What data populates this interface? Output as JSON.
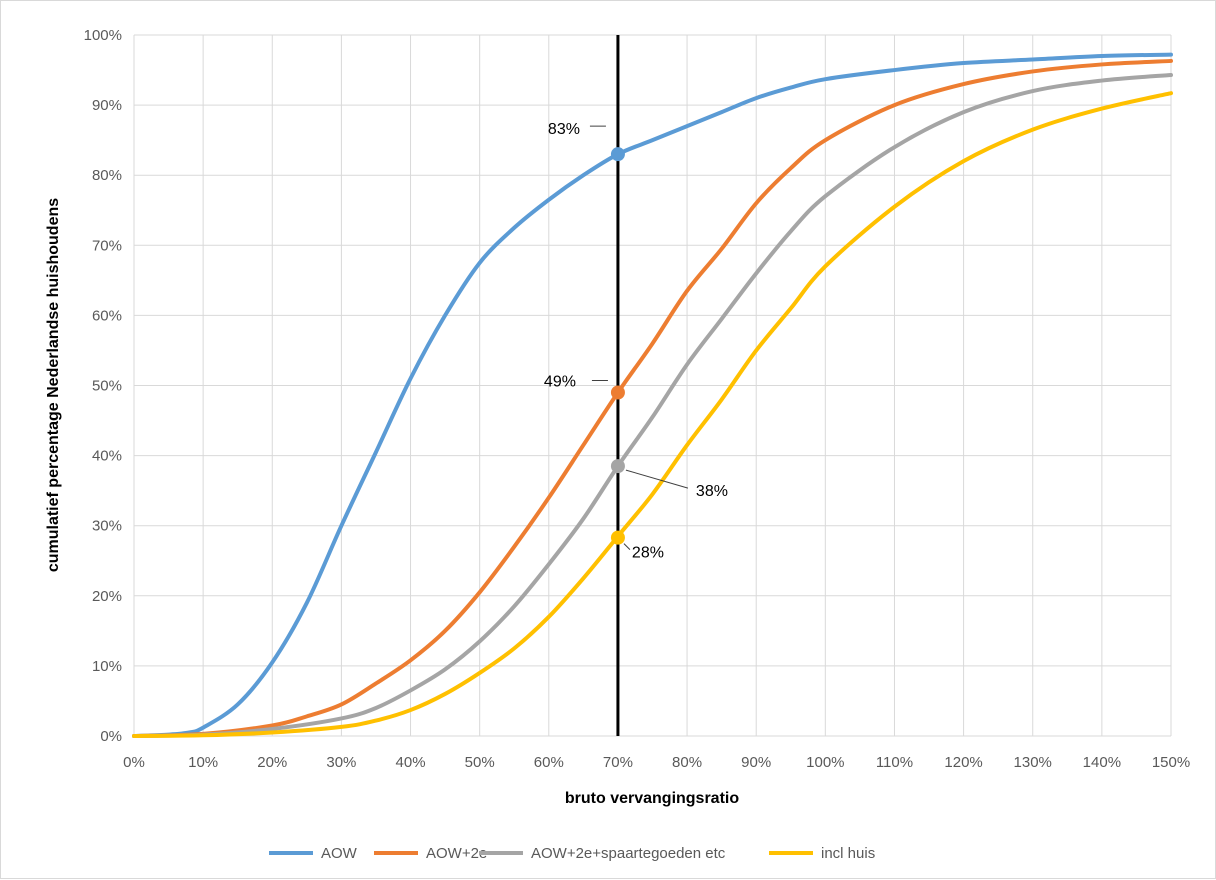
{
  "chart_data": {
    "type": "line",
    "title": "",
    "xlabel": "bruto vervangingsratio",
    "ylabel": "cumulatief percentage Nederlandse huishoudens",
    "xlim": [
      0,
      150
    ],
    "ylim": [
      0,
      100
    ],
    "x_ticks": [
      0,
      10,
      20,
      30,
      40,
      50,
      60,
      70,
      80,
      90,
      100,
      110,
      120,
      130,
      140,
      150
    ],
    "x_tick_labels": [
      "0%",
      "10%",
      "20%",
      "30%",
      "40%",
      "50%",
      "60%",
      "70%",
      "80%",
      "90%",
      "100%",
      "110%",
      "120%",
      "130%",
      "140%",
      "150%"
    ],
    "y_ticks": [
      0,
      10,
      20,
      30,
      40,
      50,
      60,
      70,
      80,
      90,
      100
    ],
    "y_tick_labels": [
      "0%",
      "10%",
      "20%",
      "30%",
      "40%",
      "50%",
      "60%",
      "70%",
      "80%",
      "90%",
      "100%"
    ],
    "grid": true,
    "legend_position": "bottom",
    "vertical_line": {
      "x": 70,
      "color": "#000000"
    },
    "series": [
      {
        "name": "AOW",
        "color": "#5B9BD5",
        "x": [
          0,
          5,
          8,
          10,
          15,
          20,
          25,
          30,
          35,
          40,
          45,
          50,
          55,
          60,
          65,
          70,
          75,
          80,
          85,
          90,
          95,
          100,
          110,
          120,
          130,
          140,
          150
        ],
        "y": [
          0,
          0.2,
          0.5,
          1.2,
          4.5,
          10.5,
          19,
          30,
          40.5,
          51,
          60,
          67.5,
          72.5,
          76.5,
          80,
          83,
          85,
          87,
          89,
          91,
          92.5,
          93.7,
          95,
          96,
          96.5,
          97,
          97.2
        ]
      },
      {
        "name": "AOW+2e",
        "color": "#ED7D31",
        "x": [
          0,
          10,
          20,
          25,
          30,
          35,
          40,
          45,
          50,
          55,
          60,
          65,
          70,
          75,
          80,
          85,
          90,
          95,
          100,
          110,
          120,
          130,
          140,
          150
        ],
        "y": [
          0,
          0.3,
          1.5,
          2.8,
          4.5,
          7.5,
          10.8,
          15,
          20.5,
          27,
          34,
          41.5,
          49,
          56,
          63.5,
          69.5,
          76,
          81,
          85,
          90,
          93,
          94.8,
          95.8,
          96.3
        ]
      },
      {
        "name": "AOW+2e+spaartegoeden etc",
        "color": "#A5A5A5",
        "x": [
          0,
          10,
          20,
          30,
          35,
          40,
          45,
          50,
          55,
          60,
          65,
          70,
          75,
          80,
          85,
          90,
          95,
          100,
          110,
          120,
          130,
          140,
          150
        ],
        "y": [
          0,
          0.2,
          1,
          2.5,
          4,
          6.5,
          9.5,
          13.5,
          18.5,
          24.5,
          31,
          38.5,
          45.5,
          53,
          59.5,
          66,
          72,
          77,
          84,
          89,
          92,
          93.5,
          94.3
        ]
      },
      {
        "name": "incl huis",
        "color": "#FFC000",
        "x": [
          0,
          10,
          20,
          30,
          35,
          40,
          45,
          50,
          55,
          60,
          65,
          70,
          75,
          80,
          85,
          90,
          95,
          100,
          110,
          120,
          130,
          140,
          150
        ],
        "y": [
          0,
          0.1,
          0.5,
          1.3,
          2.2,
          3.7,
          6,
          9,
          12.5,
          17,
          22.5,
          28.5,
          34.5,
          41.5,
          48,
          55,
          61,
          67,
          75.5,
          82,
          86.5,
          89.5,
          91.7
        ]
      }
    ],
    "annotations": [
      {
        "series": "AOW",
        "x": 70,
        "y": 83,
        "text": "83%"
      },
      {
        "series": "AOW+2e",
        "x": 70,
        "y": 49,
        "text": "49%"
      },
      {
        "series": "AOW+2e+spaartegoeden etc",
        "x": 70,
        "y": 38.5,
        "text": "38%"
      },
      {
        "series": "incl huis",
        "x": 70,
        "y": 28.3,
        "text": "28%"
      }
    ]
  }
}
